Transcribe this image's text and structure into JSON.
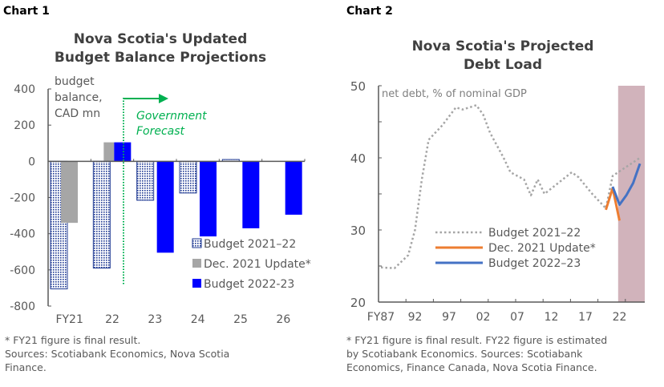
{
  "chart1": {
    "label": "Chart 1",
    "title_line1": "Nova Scotia's Updated",
    "title_line2": "Budget Balance Projections",
    "footnote_line1": "* FY21 figure is final result.",
    "footnote_line2": "Sources: Scotiabank Economics, Nova Scotia",
    "footnote_line3": "Finance.",
    "chart_data": {
      "type": "bar",
      "ylabel_lines": [
        "budget",
        "balance,",
        "CAD mn"
      ],
      "categories": [
        "FY21",
        "22",
        "23",
        "24",
        "25",
        "26"
      ],
      "ylim": [
        -800,
        400
      ],
      "yticks": [
        400,
        200,
        0,
        -200,
        -400,
        -600,
        -800
      ],
      "series": [
        {
          "name": "Budget 2021–22",
          "values": [
            -705,
            -590,
            -215,
            -175,
            10,
            null
          ],
          "color": "#1f3a93",
          "pattern": "dotted"
        },
        {
          "name": "Dec. 2021 Update*",
          "values": [
            -340,
            105,
            null,
            null,
            null,
            null
          ],
          "color": "#a6a6a6"
        },
        {
          "name": "Budget 2022-23",
          "values": [
            null,
            105,
            -505,
            -415,
            -370,
            -295
          ],
          "color": "#0000ff"
        }
      ],
      "annotation": "Government Forecast",
      "annotation_color": "#00b050",
      "legend_position": "bottom-right"
    }
  },
  "chart2": {
    "label": "Chart 2",
    "title_line1": "Nova Scotia's Projected",
    "title_line2": "Debt Load",
    "footnote_line1": "* FY21 figure is final result. FY22 figure is estimated",
    "footnote_line2": "by Scotiabank Economics. Sources: Scotiabank",
    "footnote_line3": "Economics, Finance Canada, Nova Scotia Finance.",
    "chart_data": {
      "type": "line",
      "ylabel": "net debt, % of nominal GDP",
      "ylim": [
        20,
        50
      ],
      "yticks": [
        50,
        40,
        30,
        20
      ],
      "xtick_labels": [
        "FY87",
        "92",
        "97",
        "02",
        "07",
        "12",
        "17",
        "22"
      ],
      "xtick_years": [
        1987,
        1992,
        1997,
        2002,
        2007,
        2012,
        2017,
        2022
      ],
      "shaded_region": {
        "from": 2021.8,
        "to": 2025.6,
        "color": "#d1b3bb"
      },
      "series": [
        {
          "name": "Budget 2021–22",
          "color": "#a6a6a6",
          "style": "dotted",
          "x": [
            1987,
            1989,
            1991,
            1992,
            1993,
            1994,
            1996,
            1998,
            1999,
            2001,
            2002,
            2003,
            2005,
            2006,
            2008,
            2009,
            2010,
            2011,
            2013,
            2015,
            2016,
            2018,
            2020,
            2021,
            2025
          ],
          "y": [
            24.8,
            24.7,
            26.5,
            30,
            37,
            42.5,
            44.5,
            47,
            46.7,
            47.3,
            46,
            43.5,
            40,
            38,
            37,
            34.8,
            37,
            35,
            36.5,
            38,
            37.3,
            35,
            33,
            37.5,
            40
          ]
        },
        {
          "name": "Dec. 2021 Update*",
          "color": "#ed7d31",
          "style": "solid",
          "x": [
            2020,
            2021,
            2022
          ],
          "y": [
            32.8,
            35.8,
            31.3
          ]
        },
        {
          "name": "Budget 2022–23",
          "color": "#4472c4",
          "style": "solid",
          "x": [
            2021,
            2022,
            2023,
            2024,
            2025
          ],
          "y": [
            36,
            33.5,
            34.8,
            36.5,
            39.2
          ]
        }
      ],
      "legend_position": "bottom-center"
    }
  }
}
